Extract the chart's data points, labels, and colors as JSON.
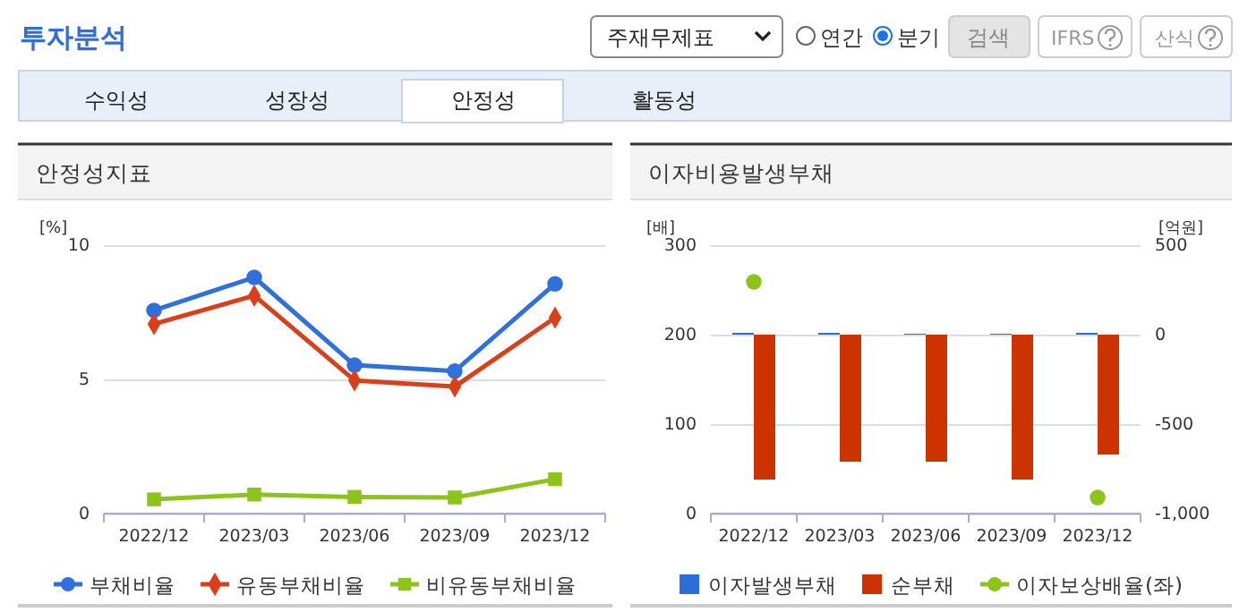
{
  "chart_data": [
    {
      "type": "other",
      "title": "투자분석",
      "annotations": [
        "주재무제표",
        "연간",
        "분기",
        "검색",
        "IFRS",
        "산식",
        "수익성",
        "성장성",
        "안정성",
        "활동성"
      ]
    },
    {
      "type": "line",
      "title": "안정성지표",
      "ylabel": "[%]",
      "categories": [
        "2022/12",
        "2023/03",
        "2023/06",
        "2023/09",
        "2023/12"
      ],
      "ylim": [
        0,
        10
      ],
      "yticks": [
        0,
        5,
        10
      ],
      "grid": "y",
      "legend": "bottom",
      "series": [
        {
          "name": "부채비율",
          "color": "#2f6fde",
          "marker": "circle",
          "values": [
            7.57,
            8.8,
            5.53,
            5.31,
            8.56
          ]
        },
        {
          "name": "유동부채비율",
          "color": "#d9401a",
          "marker": "diamond",
          "values": [
            7.06,
            8.12,
            4.96,
            4.73,
            7.3
          ]
        },
        {
          "name": "비유동부채비율",
          "color": "#8cc41a",
          "marker": "square",
          "values": [
            0.53,
            0.71,
            0.62,
            0.6,
            1.28
          ]
        }
      ]
    },
    {
      "type": "bar",
      "title": "이자비용발생부채",
      "ylabel": "[배]",
      "y2label": "[억원]",
      "categories": [
        "2022/12",
        "2023/03",
        "2023/06",
        "2023/09",
        "2023/12"
      ],
      "ylim": [
        0,
        300
      ],
      "yticks": [
        0,
        100,
        200,
        300
      ],
      "y2lim": [
        -1000,
        500
      ],
      "y2ticks": [
        {
          "value": -1000,
          "label": "-1,000"
        },
        -500,
        0,
        500
      ],
      "grid": "y",
      "legend": "bottom",
      "series": [
        {
          "name": "이자발생부채",
          "type": "bar",
          "axis": "y2",
          "color": "#2a6fd8",
          "values": [
            10,
            10,
            5,
            5,
            10
          ]
        },
        {
          "name": "순부채",
          "type": "bar",
          "axis": "y2",
          "color": "#cc3300",
          "values": [
            -810,
            -710,
            -710,
            -810,
            -670
          ]
        },
        {
          "name": "이자보상배율(좌)",
          "type": "scatter",
          "axis": "y",
          "color": "#8cc41a",
          "marker": "circle",
          "values": [
            259,
            null,
            null,
            null,
            18
          ]
        }
      ]
    }
  ]
}
